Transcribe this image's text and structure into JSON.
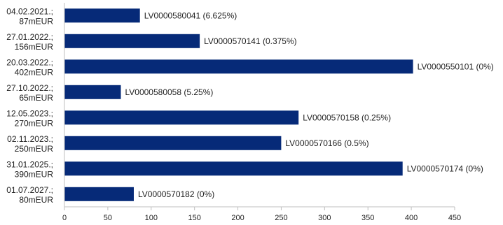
{
  "chart_data": {
    "type": "bar",
    "orientation": "horizontal",
    "categories": [
      [
        "04.02.2021.;",
        "87mEUR"
      ],
      [
        "27.01.2022.;",
        "156mEUR"
      ],
      [
        "20.03.2022.;",
        "402mEUR"
      ],
      [
        "27.10.2022.;",
        "65mEUR"
      ],
      [
        "12.05.2023.;",
        "270mEUR"
      ],
      [
        "02.11.2023.;",
        "250mEUR"
      ],
      [
        "31.01.2025.;",
        "390mEUR"
      ],
      [
        "01.07.2027.;",
        "80mEUR"
      ]
    ],
    "values": [
      87,
      156,
      402,
      65,
      270,
      250,
      390,
      80
    ],
    "data_labels": [
      "LV0000580041 (6.625%)",
      "LV0000570141 (0.375%)",
      "LV0000550101 (0%)",
      "LV0000580058 (5.25%)",
      "LV0000570158 (0.25%)",
      "LV0000570166 (0.5%)",
      "LV0000570174 (0%)",
      "LV0000570182 (0%)"
    ],
    "xlim": [
      0,
      450
    ],
    "xticks": [
      0,
      50,
      100,
      150,
      200,
      250,
      300,
      350,
      400,
      450
    ],
    "grid": false,
    "legend": "none",
    "bar_color": "#062A78",
    "axis_color": "#BFBFBF"
  }
}
